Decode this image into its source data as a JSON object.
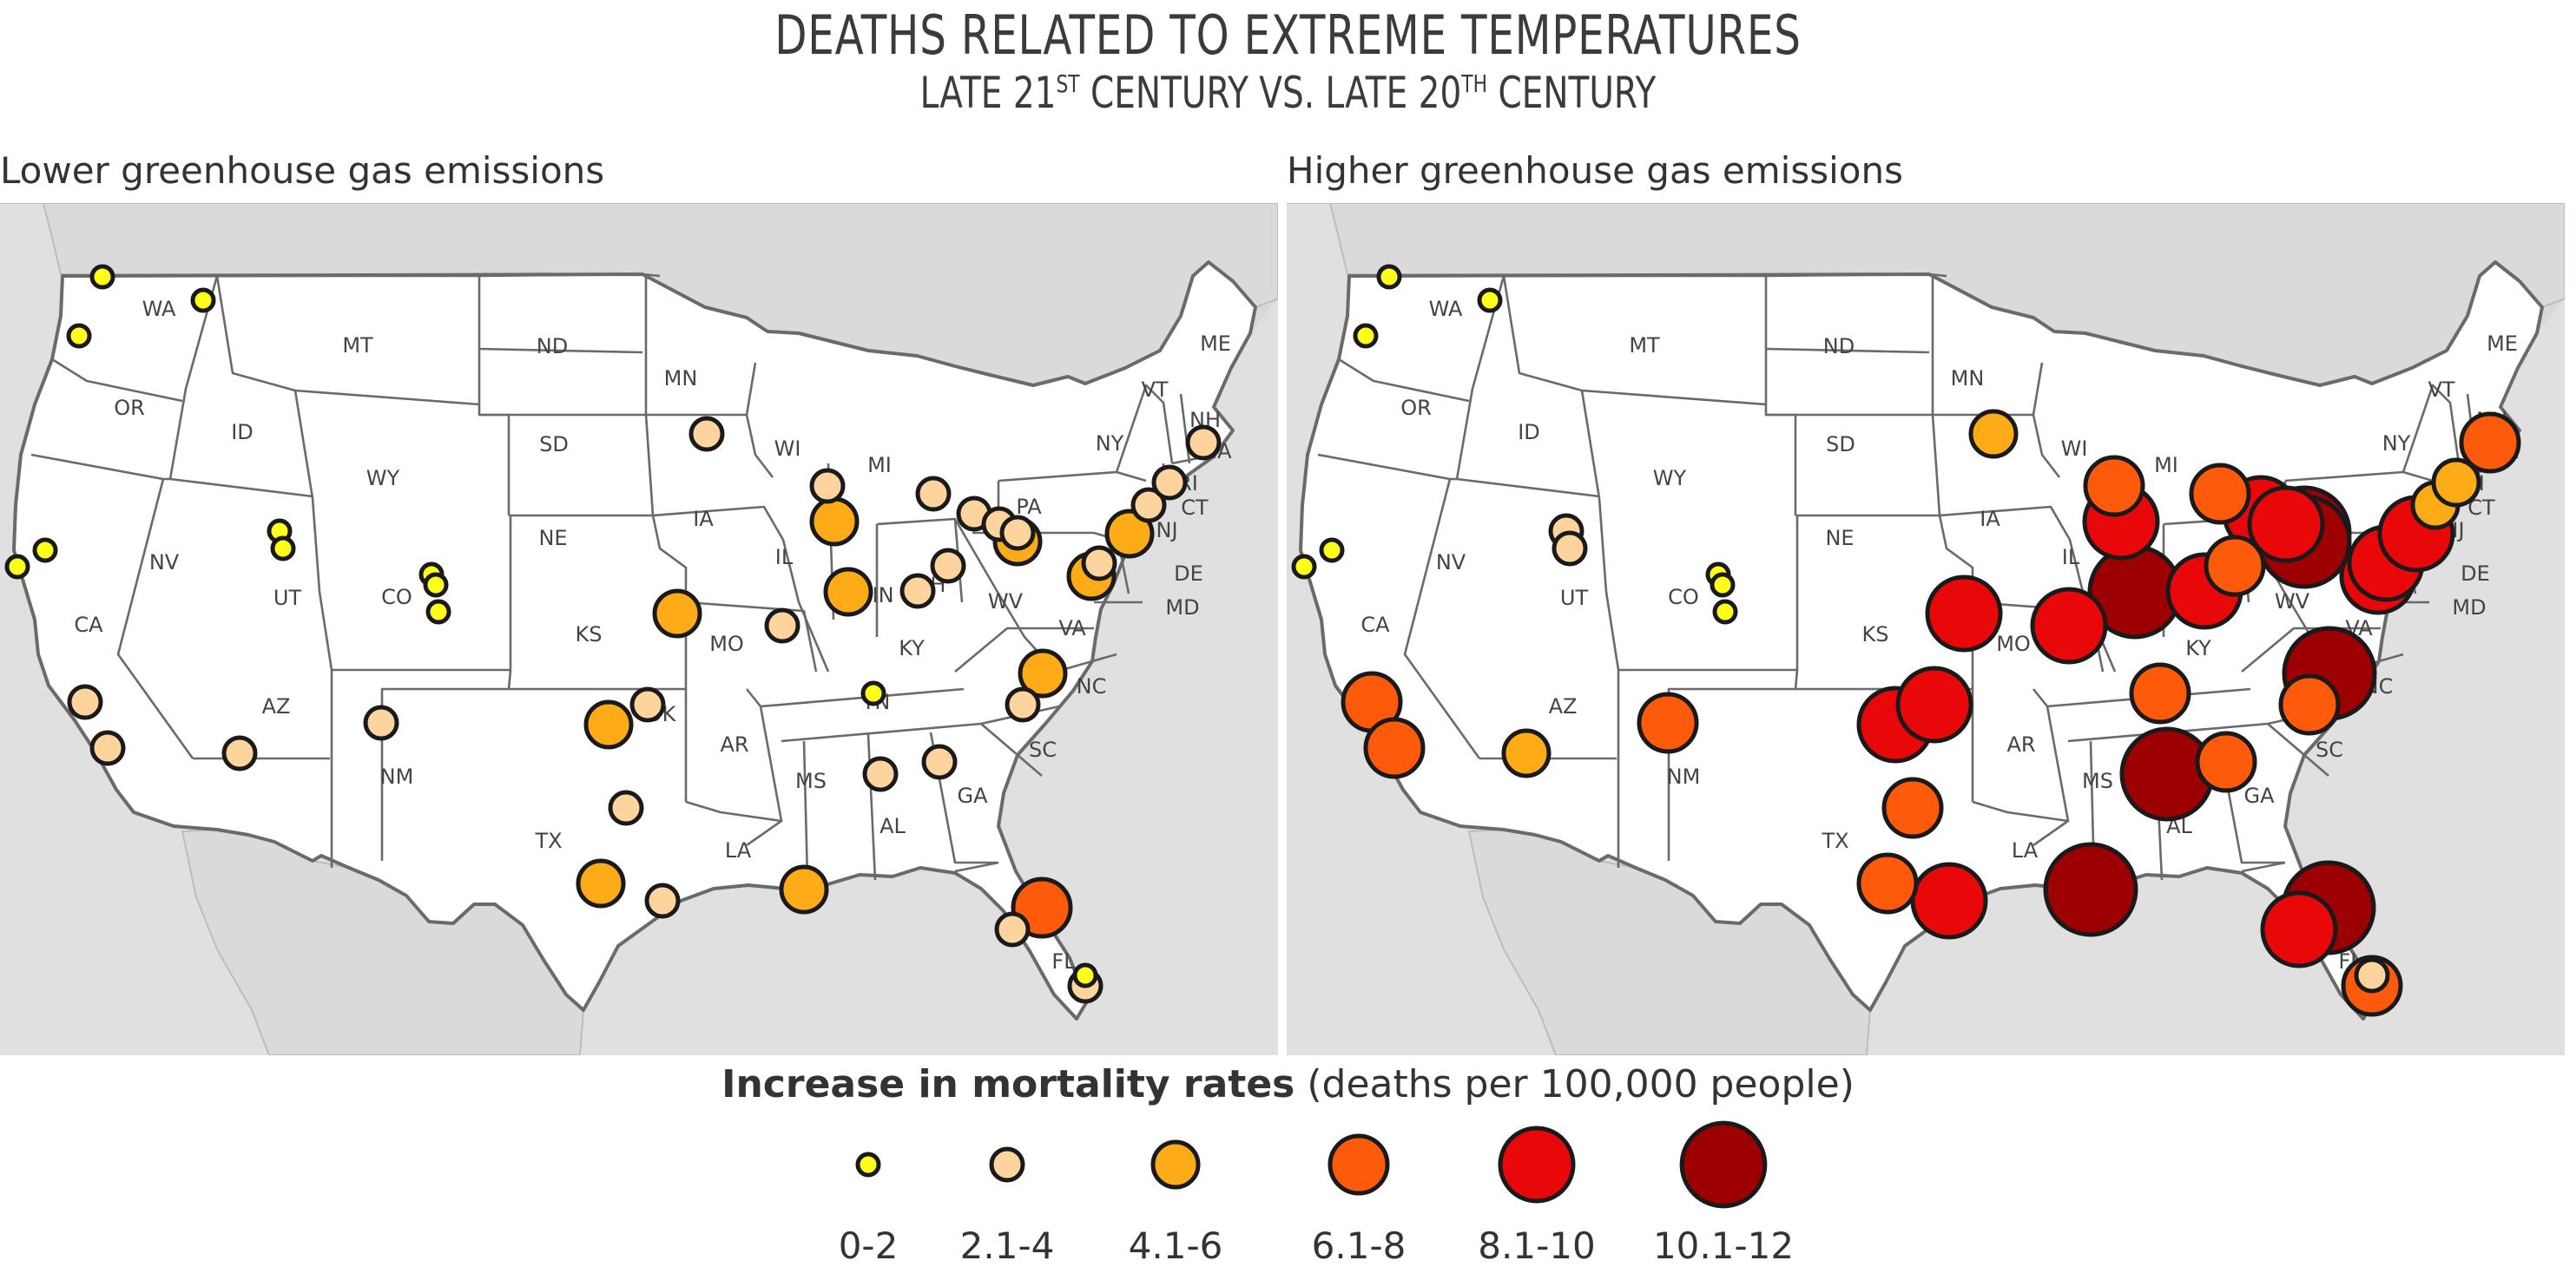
{
  "title": "Deaths Related to Extreme Temperatures",
  "subtitle": {
    "pre": "Late 21",
    "sup1": "st",
    "mid": " Century vs. Late 20",
    "sup2": "th",
    "post": " Century"
  },
  "panels": [
    {
      "label": "Lower greenhouse gas emissions"
    },
    {
      "label": "Higher greenhouse gas emissions"
    }
  ],
  "legend": {
    "title_bold": "Increase in mortality rates",
    "title_rest": "(deaths per 100,000 people)",
    "classes": [
      {
        "label": "0-2",
        "color": "#ffff1a"
      },
      {
        "label": "2.1-4",
        "color": "#fdd49e"
      },
      {
        "label": "4.1-6",
        "color": "#fdac17"
      },
      {
        "label": "6.1-8",
        "color": "#fd5a0c"
      },
      {
        "label": "8.1-10",
        "color": "#e8080a"
      },
      {
        "label": "10.1-12",
        "color": "#9c0002"
      }
    ]
  },
  "state_labels": [
    "WA",
    "OR",
    "CA",
    "NV",
    "ID",
    "MT",
    "WY",
    "UT",
    "CO",
    "AZ",
    "NM",
    "ND",
    "SD",
    "NE",
    "KS",
    "OK",
    "TX",
    "MN",
    "IA",
    "MO",
    "AR",
    "LA",
    "WI",
    "IL",
    "MI",
    "IN",
    "OH",
    "KY",
    "TN",
    "MS",
    "AL",
    "GA",
    "FL",
    "SC",
    "NC",
    "VA",
    "WV",
    "PA",
    "NY",
    "VT",
    "NH",
    "ME",
    "MA",
    "RI",
    "CT",
    "NJ",
    "DE",
    "MD"
  ],
  "cities": {
    "lower": [
      {
        "city": "Seattle",
        "c": 0
      },
      {
        "city": "Spokane",
        "c": 0
      },
      {
        "city": "Portland",
        "c": 0
      },
      {
        "city": "San Francisco",
        "c": 0
      },
      {
        "city": "Oakland",
        "c": 0
      },
      {
        "city": "Los Angeles",
        "c": 1
      },
      {
        "city": "San Diego",
        "c": 1
      },
      {
        "city": "Salt Lake City",
        "c": 0
      },
      {
        "city": "Provo",
        "c": 0
      },
      {
        "city": "Denver",
        "c": 0
      },
      {
        "city": "Boulder",
        "c": 0
      },
      {
        "city": "Colorado Springs",
        "c": 0
      },
      {
        "city": "Phoenix",
        "c": 1
      },
      {
        "city": "Albuquerque",
        "c": 1
      },
      {
        "city": "Minneapolis",
        "c": 1
      },
      {
        "city": "Milwaukee",
        "c": 1
      },
      {
        "city": "Chicago",
        "c": 2
      },
      {
        "city": "Kansas City",
        "c": 2
      },
      {
        "city": "St. Louis",
        "c": 1
      },
      {
        "city": "Indianapolis",
        "c": 2
      },
      {
        "city": "Detroit",
        "c": 1
      },
      {
        "city": "Toledo",
        "c": 1
      },
      {
        "city": "Cleveland",
        "c": 1
      },
      {
        "city": "Akron",
        "c": 1
      },
      {
        "city": "Pittsburgh",
        "c": 2
      },
      {
        "city": "Columbus",
        "c": 1
      },
      {
        "city": "Cincinnati",
        "c": 1
      },
      {
        "city": "Oklahoma City",
        "c": 2
      },
      {
        "city": "Tulsa",
        "c": 1
      },
      {
        "city": "Dallas",
        "c": 1
      },
      {
        "city": "Austin",
        "c": 2
      },
      {
        "city": "Houston",
        "c": 1
      },
      {
        "city": "New Orleans",
        "c": 2
      },
      {
        "city": "Memphis",
        "c": 0
      },
      {
        "city": "Birmingham",
        "c": 1
      },
      {
        "city": "Atlanta",
        "c": 1
      },
      {
        "city": "Charlotte",
        "c": 1
      },
      {
        "city": "Raleigh",
        "c": 2
      },
      {
        "city": "Washington",
        "c": 2
      },
      {
        "city": "Baltimore",
        "c": 1
      },
      {
        "city": "Philadelphia",
        "c": 2
      },
      {
        "city": "New York",
        "c": 1
      },
      {
        "city": "Providence",
        "c": 1
      },
      {
        "city": "Boston",
        "c": 1
      },
      {
        "city": "Jacksonville",
        "c": 3
      },
      {
        "city": "Tampa",
        "c": 1
      },
      {
        "city": "Miami",
        "c": 1
      },
      {
        "city": "Fort Lauderdale",
        "c": 0
      }
    ],
    "higher": [
      {
        "city": "Seattle",
        "c": 0
      },
      {
        "city": "Spokane",
        "c": 0
      },
      {
        "city": "Portland",
        "c": 0
      },
      {
        "city": "San Francisco",
        "c": 0
      },
      {
        "city": "Oakland",
        "c": 0
      },
      {
        "city": "Los Angeles",
        "c": 3
      },
      {
        "city": "San Diego",
        "c": 3
      },
      {
        "city": "Salt Lake City",
        "c": 1
      },
      {
        "city": "Provo",
        "c": 1
      },
      {
        "city": "Denver",
        "c": 0
      },
      {
        "city": "Boulder",
        "c": 0
      },
      {
        "city": "Colorado Springs",
        "c": 0
      },
      {
        "city": "Phoenix",
        "c": 2
      },
      {
        "city": "Albuquerque",
        "c": 3
      },
      {
        "city": "Minneapolis",
        "c": 2
      },
      {
        "city": "Milwaukee",
        "c": 3
      },
      {
        "city": "Chicago",
        "c": 4
      },
      {
        "city": "Kansas City",
        "c": 4
      },
      {
        "city": "St. Louis",
        "c": 4
      },
      {
        "city": "Indianapolis",
        "c": 5
      },
      {
        "city": "Detroit",
        "c": 3
      },
      {
        "city": "Toledo",
        "c": 4
      },
      {
        "city": "Cleveland",
        "c": 4
      },
      {
        "city": "Akron",
        "c": 5
      },
      {
        "city": "Pittsburgh",
        "c": 5
      },
      {
        "city": "Columbus",
        "c": 3
      },
      {
        "city": "Cincinnati",
        "c": 4
      },
      {
        "city": "Oklahoma City",
        "c": 4
      },
      {
        "city": "Tulsa",
        "c": 4
      },
      {
        "city": "Dallas",
        "c": 3
      },
      {
        "city": "Austin",
        "c": 3
      },
      {
        "city": "Houston",
        "c": 4
      },
      {
        "city": "New Orleans",
        "c": 5
      },
      {
        "city": "Memphis",
        "c": 3
      },
      {
        "city": "Birmingham",
        "c": 5
      },
      {
        "city": "Atlanta",
        "c": 3
      },
      {
        "city": "Charlotte",
        "c": 3
      },
      {
        "city": "Raleigh",
        "c": 5
      },
      {
        "city": "Washington",
        "c": 4
      },
      {
        "city": "Baltimore",
        "c": 4
      },
      {
        "city": "Philadelphia",
        "c": 4
      },
      {
        "city": "New York",
        "c": 2
      },
      {
        "city": "Providence",
        "c": 2
      },
      {
        "city": "Boston",
        "c": 3
      },
      {
        "city": "Jacksonville",
        "c": 5
      },
      {
        "city": "Tampa",
        "c": 4
      },
      {
        "city": "Miami",
        "c": 3
      },
      {
        "city": "Fort Lauderdale",
        "c": 1
      }
    ]
  }
}
